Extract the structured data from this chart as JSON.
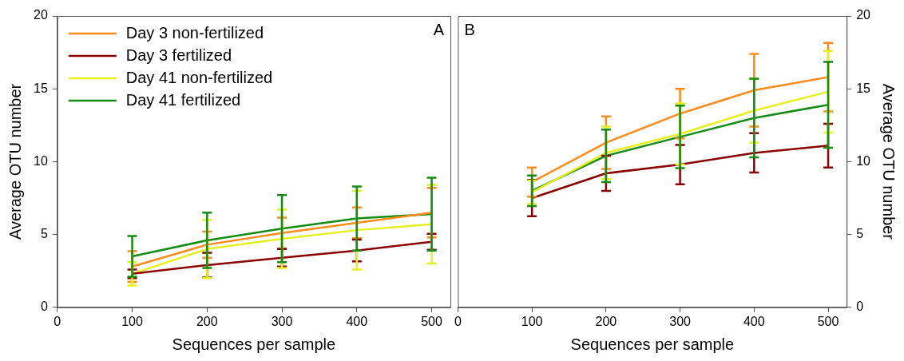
{
  "chart_data": [
    {
      "type": "line",
      "xlabel": "Sequences per sample",
      "ylabel": "Average OTU number",
      "annotations": [
        "A"
      ],
      "x": [
        100,
        200,
        300,
        400,
        500
      ],
      "xlim": [
        0,
        525
      ],
      "xticks": [
        0,
        100,
        200,
        300,
        400,
        500
      ],
      "ylim": [
        0,
        20
      ],
      "yticks": [
        0,
        5,
        10,
        15,
        20
      ],
      "legend": "top left",
      "grid": false,
      "marker": "none",
      "series": [
        {
          "name": "Day 3 non-fertilized",
          "color": "#ff8c1a",
          "values": [
            2.8,
            4.3,
            5.1,
            5.8,
            6.5
          ],
          "errors": [
            1.05,
            0.9,
            1.05,
            1.05,
            1.7
          ]
        },
        {
          "name": "Day 3 fertilized",
          "color": "#8b0000",
          "values": [
            2.3,
            2.9,
            3.4,
            3.9,
            4.5
          ],
          "errors": [
            0.3,
            0.85,
            0.6,
            0.75,
            0.55
          ]
        },
        {
          "name": "Day 41 non-fertilized",
          "color": "#e6f01e",
          "values": [
            2.3,
            4.0,
            4.7,
            5.3,
            5.7
          ],
          "errors": [
            0.8,
            2.0,
            2.0,
            2.7,
            2.7
          ]
        },
        {
          "name": "Day 41 fertilized",
          "color": "#148c14",
          "values": [
            3.5,
            4.6,
            5.4,
            6.1,
            6.4
          ],
          "errors": [
            1.4,
            1.9,
            2.3,
            2.2,
            2.5
          ]
        }
      ]
    },
    {
      "type": "line",
      "xlabel": "Sequences per sample",
      "y2label": "Average OTU number",
      "annotations": [
        "B"
      ],
      "x": [
        100,
        200,
        300,
        400,
        500
      ],
      "xlim": [
        0,
        525
      ],
      "xticks": [
        0,
        100,
        200,
        300,
        400,
        500
      ],
      "y2lim": [
        0,
        20
      ],
      "y2ticks": [
        0,
        5,
        10,
        15,
        20
      ],
      "grid": false,
      "marker": "none",
      "series": [
        {
          "color": "#ff8c1a",
          "axis": "y2",
          "values": [
            8.6,
            11.3,
            13.3,
            14.9,
            15.8
          ],
          "errors": [
            1.0,
            1.8,
            1.7,
            2.5,
            2.35
          ]
        },
        {
          "color": "#8b0000",
          "axis": "y2",
          "values": [
            7.5,
            9.2,
            9.8,
            10.6,
            11.1
          ],
          "errors": [
            1.25,
            1.2,
            1.35,
            1.35,
            1.5
          ]
        },
        {
          "color": "#e6f01e",
          "axis": "y2",
          "values": [
            7.9,
            10.6,
            11.9,
            13.5,
            14.8
          ],
          "errors": [
            0.8,
            1.8,
            2.1,
            2.2,
            2.8
          ]
        },
        {
          "color": "#148c14",
          "axis": "y2",
          "values": [
            8.0,
            10.4,
            11.7,
            13.0,
            13.9
          ],
          "errors": [
            1.05,
            1.8,
            2.15,
            2.7,
            2.95
          ]
        }
      ]
    }
  ]
}
